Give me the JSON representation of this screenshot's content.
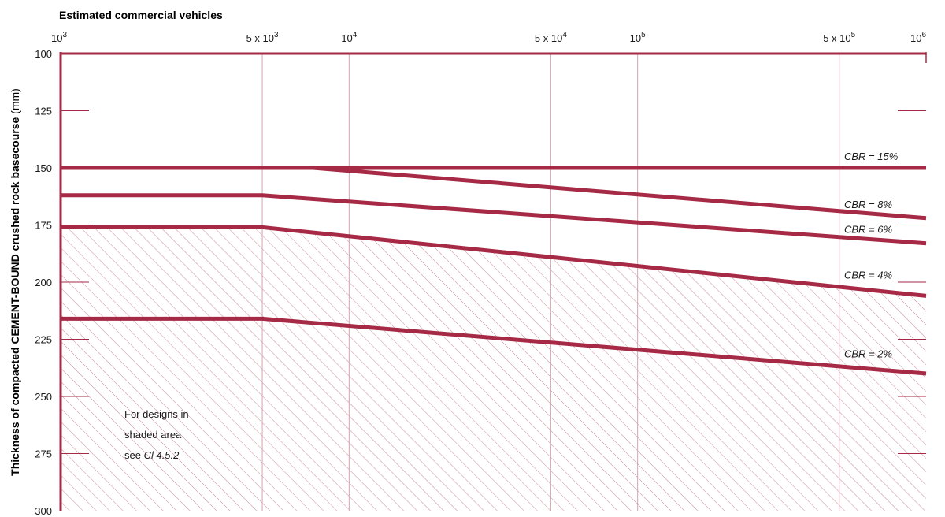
{
  "chart_data": {
    "type": "line",
    "xlabel": "Estimated commercial vehicles",
    "ylabel_bold": "Thickness of compacted CEMENT-BOUND crushed rock basecourse",
    "ylabel_unit": "(mm)",
    "x_scale": "log",
    "xlim": [
      1000,
      1000000
    ],
    "ylim": [
      100,
      300
    ],
    "y_reversed": true,
    "x_ticks": [
      {
        "value": 1000,
        "base": "10",
        "exp": "3",
        "prefix": ""
      },
      {
        "value": 5000,
        "base": "10",
        "exp": "3",
        "prefix": "5 x "
      },
      {
        "value": 10000,
        "base": "10",
        "exp": "4",
        "prefix": ""
      },
      {
        "value": 50000,
        "base": "10",
        "exp": "4",
        "prefix": "5 x "
      },
      {
        "value": 100000,
        "base": "10",
        "exp": "5",
        "prefix": ""
      },
      {
        "value": 500000,
        "base": "10",
        "exp": "5",
        "prefix": "5 x "
      },
      {
        "value": 1000000,
        "base": "10",
        "exp": "6",
        "prefix": ""
      }
    ],
    "y_ticks": [
      "100",
      "125",
      "150",
      "175",
      "200",
      "225",
      "250",
      "275",
      "300"
    ],
    "series": [
      {
        "name": "CBR = 15%",
        "x": [
          1000,
          1000000
        ],
        "y": [
          150,
          150
        ]
      },
      {
        "name": "CBR = 8%",
        "x": [
          1000,
          7500,
          1000000
        ],
        "y": [
          150,
          150,
          172
        ]
      },
      {
        "name": "CBR = 6%",
        "x": [
          1000,
          5000,
          1000000
        ],
        "y": [
          162,
          162,
          183
        ]
      },
      {
        "name": "CBR = 4%",
        "x": [
          1000,
          5000,
          1000000
        ],
        "y": [
          176,
          176,
          206
        ]
      },
      {
        "name": "CBR = 2%",
        "x": [
          1000,
          5000,
          1000000
        ],
        "y": [
          216,
          216,
          240
        ]
      }
    ],
    "shaded_region": {
      "description_lines": [
        "For designs in",
        "shaded area"
      ],
      "ref_prefix": "see ",
      "ref": "Cl 4.5.2"
    }
  },
  "colors": {
    "series": "#a62a45",
    "grid": "#d6a3b0",
    "hatch": "#c98a99"
  }
}
